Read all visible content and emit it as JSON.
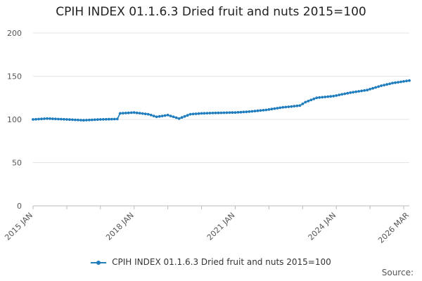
{
  "chart_data": {
    "type": "line",
    "title": "CPIH INDEX 01.1.6.3 Dried fruit and nuts 2015=100",
    "xlabel": "",
    "ylabel": "",
    "ylim": [
      0,
      200
    ],
    "yticks": [
      0,
      50,
      100,
      150,
      200
    ],
    "x_range": [
      "2015 JAN",
      "2026 MAR"
    ],
    "x_tick_labels": [
      "2015 JAN",
      "2018 JAN",
      "2021 JAN",
      "2024 JAN",
      "2026 MAR"
    ],
    "grid": "horizontal",
    "legend": "bottom",
    "color": "#1f7dbd",
    "series": [
      {
        "name": "CPIH INDEX 01.1.6.3 Dried fruit and nuts 2015=100",
        "points": [
          [
            "2015 JAN",
            100
          ],
          [
            "2015 JUN",
            101
          ],
          [
            "2016 JAN",
            100
          ],
          [
            "2016 JUL",
            99
          ],
          [
            "2017 JAN",
            100
          ],
          [
            "2017 JUL",
            100.5
          ],
          [
            "2017 AUG",
            107
          ],
          [
            "2018 JAN",
            108
          ],
          [
            "2018 JUN",
            106
          ],
          [
            "2018 SEP",
            103
          ],
          [
            "2019 JAN",
            105
          ],
          [
            "2019 MAY",
            101
          ],
          [
            "2019 SEP",
            106
          ],
          [
            "2020 JAN",
            107
          ],
          [
            "2020 JUN",
            107.5
          ],
          [
            "2021 JAN",
            108
          ],
          [
            "2021 JUN",
            109
          ],
          [
            "2021 DEC",
            111
          ],
          [
            "2022 JUN",
            114
          ],
          [
            "2022 DEC",
            116
          ],
          [
            "2023 FEB",
            120
          ],
          [
            "2023 JUN",
            125
          ],
          [
            "2023 DEC",
            127
          ],
          [
            "2024 JUN",
            131
          ],
          [
            "2024 DEC",
            134
          ],
          [
            "2025 MAY",
            139
          ],
          [
            "2025 SEP",
            142
          ],
          [
            "2026 MAR",
            145
          ]
        ]
      }
    ]
  },
  "source_label": "Source:"
}
